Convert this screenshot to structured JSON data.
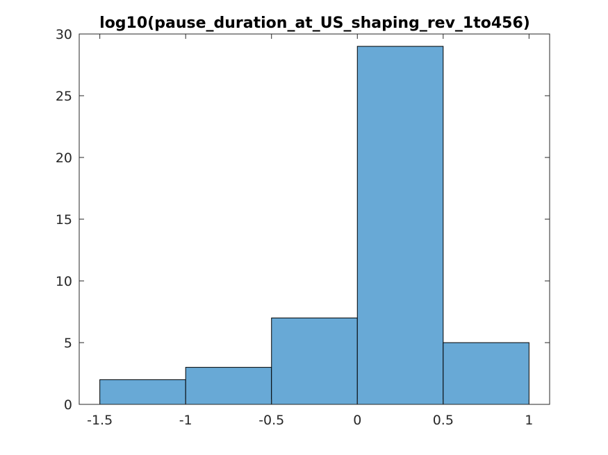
{
  "chart_data": {
    "type": "bar",
    "subtype": "histogram",
    "title": "log10(pause_duration_at_US_shaping_rev_1to456)",
    "xlabel": "",
    "ylabel": "",
    "bins": [
      {
        "x0": -1.5,
        "x1": -1.0,
        "count": 2
      },
      {
        "x0": -1.0,
        "x1": -0.5,
        "count": 3
      },
      {
        "x0": -0.5,
        "x1": 0.0,
        "count": 7
      },
      {
        "x0": 0.0,
        "x1": 0.5,
        "count": 29
      },
      {
        "x0": 0.5,
        "x1": 1.0,
        "count": 5
      }
    ],
    "xlim": [
      -1.62,
      1.12
    ],
    "ylim": [
      0,
      30
    ],
    "xticks": [
      -1.5,
      -1,
      -0.5,
      0,
      0.5,
      1
    ],
    "xtick_labels": [
      "-1.5",
      "-1",
      "-0.5",
      "0",
      "0.5",
      "1"
    ],
    "yticks": [
      0,
      5,
      10,
      15,
      20,
      25,
      30
    ],
    "ytick_labels": [
      "0",
      "5",
      "10",
      "15",
      "20",
      "25",
      "30"
    ],
    "grid": false,
    "legend": "none",
    "colors": {
      "bar_fill": "#68a9d6",
      "bar_edge": "#000000",
      "axis": "#262626"
    }
  }
}
